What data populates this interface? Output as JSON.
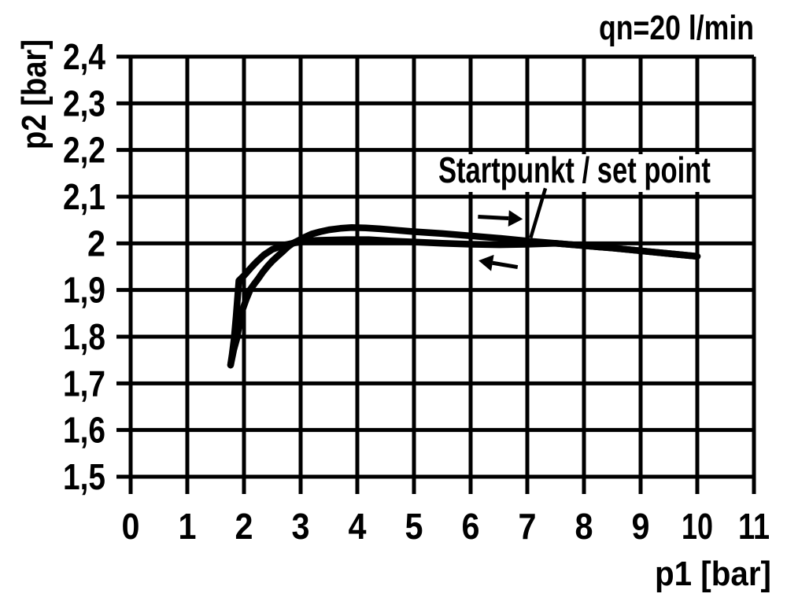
{
  "page": {
    "background_color": "#ffffff",
    "ink_color": "#000000"
  },
  "chart_data": {
    "type": "line",
    "title": "qn=20 l/min",
    "title_position": "top-right",
    "xlabel": "p1 [bar]",
    "ylabel": "p2 [bar]",
    "xlim": [
      0,
      11
    ],
    "ylim": [
      1.5,
      2.4
    ],
    "grid": true,
    "legend": false,
    "decimal_separator": ",",
    "xticks": {
      "values": [
        0,
        1,
        2,
        3,
        4,
        5,
        6,
        7,
        8,
        9,
        10,
        11
      ],
      "labels": [
        "0",
        "1",
        "2",
        "3",
        "4",
        "5",
        "6",
        "7",
        "8",
        "9",
        "10",
        "11"
      ]
    },
    "yticks": {
      "values": [
        2.4,
        2.3,
        2.2,
        2.1,
        2.0,
        1.9,
        1.8,
        1.7,
        1.6,
        1.5
      ],
      "labels": [
        "2,4",
        "2,3",
        "2,2",
        "2,1",
        "2",
        "1,9",
        "1,8",
        "1,7",
        "1,6",
        "1,5"
      ]
    },
    "series": [
      {
        "name": "pressure-rising",
        "description": "hysteresis branch traversed with increasing p1 (right arrow)",
        "color": "#000000",
        "points": [
          [
            1.764,
            1.739
          ],
          [
            1.82,
            1.772
          ],
          [
            1.875,
            1.796
          ],
          [
            1.92,
            1.828
          ],
          [
            1.972,
            1.857
          ],
          [
            2.04,
            1.88
          ],
          [
            2.111,
            1.901
          ],
          [
            2.18,
            1.913
          ],
          [
            2.25,
            1.924
          ],
          [
            2.33,
            1.938
          ],
          [
            2.417,
            1.951
          ],
          [
            2.5,
            1.962
          ],
          [
            2.597,
            1.973
          ],
          [
            2.69,
            1.983
          ],
          [
            2.778,
            1.993
          ],
          [
            2.86,
            2.0
          ],
          [
            2.944,
            2.005
          ],
          [
            3.07,
            2.013
          ],
          [
            3.194,
            2.02
          ],
          [
            3.35,
            2.025
          ],
          [
            3.5,
            2.029
          ],
          [
            3.7,
            2.032
          ],
          [
            3.9,
            2.034
          ],
          [
            4.15,
            2.033
          ],
          [
            4.4,
            2.031
          ],
          [
            4.7,
            2.028
          ],
          [
            5.0,
            2.025
          ],
          [
            5.5,
            2.021
          ],
          [
            6.0,
            2.016
          ],
          [
            6.5,
            2.011
          ],
          [
            7.0,
            2.005
          ],
          [
            7.5,
            2.0
          ],
          [
            8.0,
            1.995
          ],
          [
            8.5,
            1.99
          ],
          [
            9.0,
            1.984
          ],
          [
            9.5,
            1.978
          ],
          [
            10.0,
            1.972
          ]
        ]
      },
      {
        "name": "pressure-falling",
        "description": "hysteresis branch traversed with decreasing p1 (left arrow)",
        "color": "#000000",
        "points": [
          [
            10.0,
            1.972
          ],
          [
            9.5,
            1.978
          ],
          [
            9.0,
            1.984
          ],
          [
            8.5,
            1.99
          ],
          [
            8.0,
            1.995
          ],
          [
            7.5,
            2.0
          ],
          [
            7.0,
            1.998
          ],
          [
            6.5,
            1.997
          ],
          [
            6.0,
            1.998
          ],
          [
            5.5,
            2.0
          ],
          [
            5.0,
            2.003
          ],
          [
            4.6,
            2.005
          ],
          [
            4.2,
            2.008
          ],
          [
            3.8,
            2.008
          ],
          [
            3.45,
            2.007
          ],
          [
            3.2,
            2.006
          ],
          [
            2.9,
            2.001
          ],
          [
            2.7,
            1.996
          ],
          [
            2.5,
            1.987
          ],
          [
            2.35,
            1.975
          ],
          [
            2.22,
            1.96
          ],
          [
            2.14,
            1.95
          ],
          [
            2.01,
            1.932
          ],
          [
            1.91,
            1.92
          ],
          [
            1.889,
            1.887
          ],
          [
            1.861,
            1.843
          ],
          [
            1.826,
            1.796
          ],
          [
            1.792,
            1.762
          ],
          [
            1.764,
            1.74
          ]
        ]
      }
    ],
    "annotations": {
      "set_point_label": {
        "text": "Startpunkt / set point",
        "anchor_p1": 5.43,
        "anchor_p2": 2.132
      },
      "leader_line": {
        "from": [
          7.32,
          2.118
        ],
        "to": [
          7.06,
          2.012
        ]
      },
      "direction_arrows": [
        {
          "icon": "arrow-right",
          "from": [
            6.13,
            2.057
          ],
          "to": [
            6.92,
            2.052
          ]
        },
        {
          "icon": "arrow-left",
          "from": [
            6.83,
            1.949
          ],
          "to": [
            6.14,
            1.963
          ]
        }
      ]
    }
  }
}
